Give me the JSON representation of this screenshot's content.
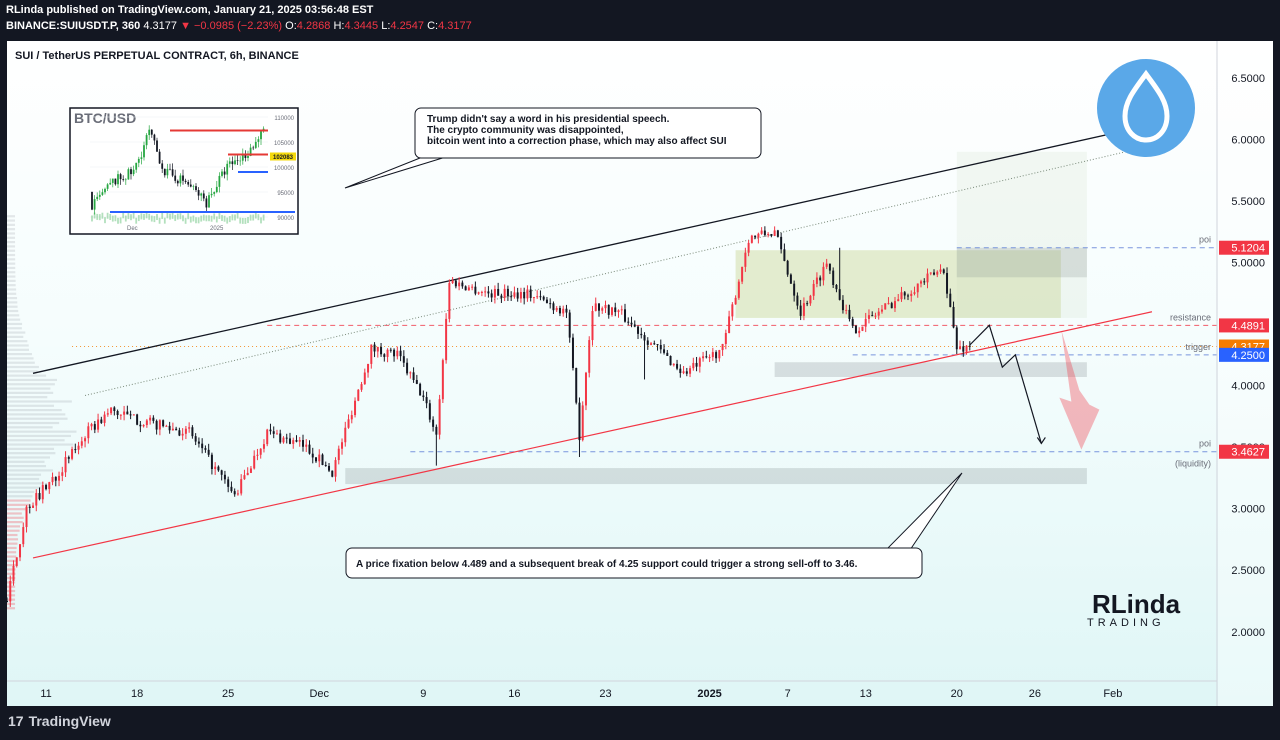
{
  "header": {
    "line1": "RLinda published on TradingView.com, January 21, 2025 03:56:48 EST",
    "symbol": "BINANCE:SUIUSDT.P, 360",
    "last": "4.3177",
    "change": "▼ −0.0985 (−2.23%)",
    "o_label": "O:",
    "o": "4.2868",
    "h_label": "H:",
    "h": "4.3445",
    "l_label": "L:",
    "l": "4.2547",
    "c_label": "C:",
    "c": "4.3177"
  },
  "footer": {
    "brand": "TradingView"
  },
  "colors": {
    "bull": "#f23645",
    "bear": "#131722",
    "resistance": "#f23645",
    "current": "#f57c00",
    "trigger": "#2962ff",
    "poi": "#f23645",
    "zone_fill": "#c9d7ac",
    "accent_blue": "#5aa8e8"
  },
  "chart_data": {
    "type": "candlestick",
    "title": "SUI / TetherUS PERPETUAL CONTRACT, 6h, BINANCE",
    "y_range": [
      1.6,
      6.8
    ],
    "y_ticks": [
      "6.5000",
      "6.0000",
      "5.5000",
      "5.0000",
      "4.5000",
      "4.0000",
      "3.5000",
      "3.0000",
      "2.5000",
      "2.0000"
    ],
    "x_ticks": [
      "11",
      "18",
      "25",
      "Dec",
      "9",
      "16",
      "23",
      "2025",
      "7",
      "13",
      "20",
      "26",
      "Feb"
    ],
    "x_tick_values": [
      0,
      7,
      14,
      21,
      29,
      36,
      43,
      51,
      57,
      63,
      70,
      76,
      82
    ],
    "x_tick_bold": [
      false,
      false,
      false,
      false,
      false,
      false,
      false,
      true,
      false,
      false,
      false,
      false,
      false
    ],
    "x_domain": [
      -3,
      90
    ],
    "last_day": 71,
    "key_path": [
      [
        -3,
        2.25
      ],
      [
        -1.5,
        3.0
      ],
      [
        1,
        3.3
      ],
      [
        3,
        3.6
      ],
      [
        5,
        3.8
      ],
      [
        7,
        3.72
      ],
      [
        11,
        3.62
      ],
      [
        14.5,
        3.1
      ],
      [
        17,
        3.62
      ],
      [
        20,
        3.5
      ],
      [
        22,
        3.3
      ],
      [
        25,
        4.3
      ],
      [
        27,
        4.25
      ],
      [
        29,
        3.9
      ],
      [
        30,
        3.6
      ],
      [
        31,
        4.85
      ],
      [
        34,
        4.75
      ],
      [
        37,
        4.75
      ],
      [
        40,
        4.6
      ],
      [
        41,
        3.6
      ],
      [
        42,
        4.65
      ],
      [
        44,
        4.6
      ],
      [
        47,
        4.3
      ],
      [
        49,
        4.1
      ],
      [
        52,
        4.3
      ],
      [
        54,
        5.2
      ],
      [
        56,
        5.25
      ],
      [
        58,
        4.6
      ],
      [
        60,
        5.0
      ],
      [
        62,
        4.45
      ],
      [
        64,
        4.6
      ],
      [
        67,
        4.82
      ],
      [
        69,
        4.95
      ],
      [
        70,
        4.3
      ],
      [
        71,
        4.3177
      ]
    ],
    "wick_spikes": [
      [
        41,
        3.42
      ],
      [
        30,
        3.35
      ],
      [
        46,
        4.05
      ],
      [
        72.5,
        5.12
      ],
      [
        61,
        5.12
      ]
    ],
    "levels": [
      {
        "label": "5.1204",
        "value": 5.1204,
        "role": "poi",
        "side_text": "poi"
      },
      {
        "label": "4.4891",
        "value": 4.4891,
        "role": "resistance",
        "side_text": "resistance"
      },
      {
        "label": "4.3177",
        "value": 4.3177,
        "role": "current",
        "side_text": ""
      },
      {
        "label": "4.2500",
        "value": 4.25,
        "role": "trigger",
        "side_text": "trigger"
      },
      {
        "label": "3.4627",
        "value": 3.4627,
        "role": "poi",
        "side_text": "poi"
      }
    ],
    "liquidity_label": "(liquidity)",
    "channel": {
      "upper": [
        [
          -1,
          4.1
        ],
        [
          85,
          6.12
        ]
      ],
      "upper_inner": [
        [
          3,
          3.92
        ],
        [
          85,
          5.95
        ]
      ],
      "lower": [
        [
          -1,
          2.6
        ],
        [
          85,
          4.6
        ]
      ]
    },
    "zones": [
      {
        "name": "range",
        "x": [
          53,
          78
        ],
        "y": [
          4.55,
          5.1
        ],
        "kind": "green"
      },
      {
        "name": "poi-upper",
        "x": [
          70,
          80
        ],
        "y": [
          4.88,
          5.12
        ],
        "kind": "grey"
      },
      {
        "name": "trigger-zone",
        "x": [
          56,
          80
        ],
        "y": [
          4.07,
          4.19
        ],
        "kind": "grey"
      },
      {
        "name": "liquidity-zone",
        "x": [
          23,
          80
        ],
        "y": [
          3.2,
          3.33
        ],
        "kind": "grey"
      }
    ],
    "projection": [
      [
        71,
        4.33
      ],
      [
        72.5,
        4.49
      ],
      [
        73.5,
        4.15
      ],
      [
        74.5,
        4.25
      ],
      [
        76.5,
        3.53
      ]
    ]
  },
  "inset": {
    "title": "BTC/USD",
    "y_ticks": [
      "110000",
      "105000",
      "100000",
      "95000",
      "90000"
    ],
    "price_tag": "102083",
    "x_ticks": [
      "Dec",
      "2025"
    ]
  },
  "annotations": {
    "top_note": [
      "Trump didn't say a word in his presidential speech.",
      "The crypto community was disappointed,",
      "bitcoin went into a correction phase, which may also affect SUI"
    ],
    "bottom_note": "A price fixation below 4.489 and a subsequent break of 4.25 support could trigger a strong sell-off to 3.46."
  },
  "logo": {
    "brand_top": "RLinda",
    "brand_bottom": "TRADING"
  }
}
